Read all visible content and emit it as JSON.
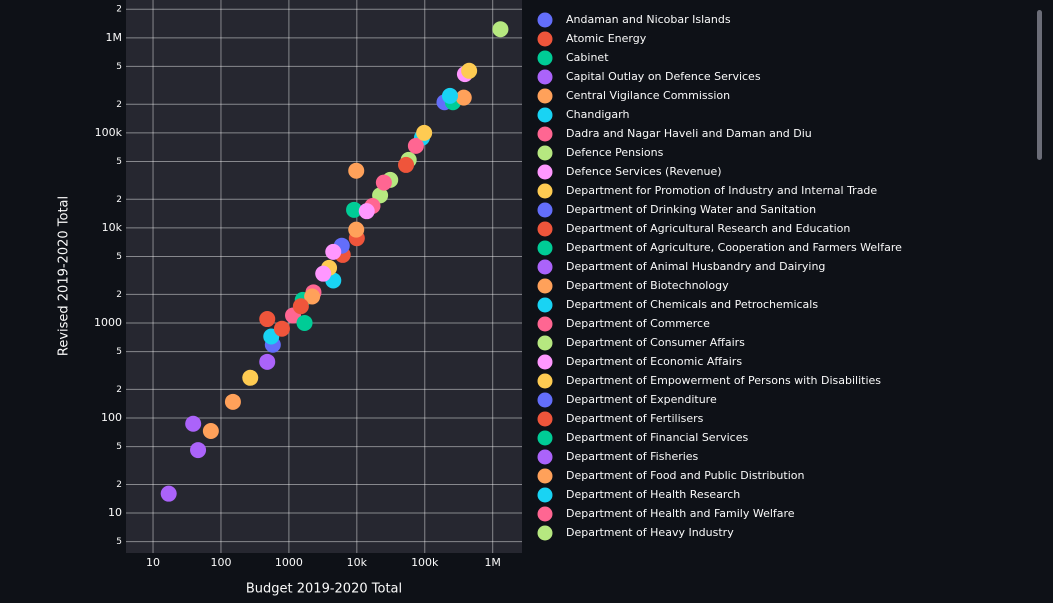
{
  "chart_data": {
    "type": "scatter",
    "log_x": true,
    "log_y": true,
    "grid": true,
    "x_label": "Budget 2019-2020 Total",
    "y_label": "Revised 2019-2020 Total",
    "xlim": [
      4,
      2700000
    ],
    "ylim": [
      3.8,
      2500000
    ],
    "xticks": [
      10,
      100,
      1000,
      {
        "value": 10000,
        "label": "10k"
      },
      {
        "value": 100000,
        "label": "100k"
      },
      {
        "value": 1000000,
        "label": "1M"
      }
    ],
    "yticks": [
      5,
      10,
      {
        "value": 20,
        "label": "2"
      },
      {
        "value": 50,
        "label": "5"
      },
      100,
      {
        "value": 200,
        "label": "2"
      },
      {
        "value": 500,
        "label": "5"
      },
      1000,
      {
        "value": 2000,
        "label": "2"
      },
      {
        "value": 5000,
        "label": "5"
      },
      {
        "value": 10000,
        "label": "10k"
      },
      {
        "value": 20000,
        "label": "2"
      },
      {
        "value": 50000,
        "label": "5"
      },
      {
        "value": 100000,
        "label": "100k"
      },
      {
        "value": 200000,
        "label": "2"
      },
      {
        "value": 500000,
        "label": "5"
      },
      {
        "value": 1000000,
        "label": "1M"
      },
      {
        "value": 2000000,
        "label": "2"
      }
    ],
    "series": [
      {
        "name": "Andaman and Nicobar Islands",
        "color": "#636efa",
        "x": [
          580
        ],
        "values": [
          590
        ]
      },
      {
        "name": "Atomic Energy",
        "color": "#EF553B",
        "x": [
          6200
        ],
        "values": [
          5200
        ]
      },
      {
        "name": "Cabinet",
        "color": "#00cc96",
        "x": [
          1600
        ],
        "values": [
          1750
        ]
      },
      {
        "name": "Capital Outlay on Defence Services",
        "color": "#ab63fa",
        "x": [
          480
        ],
        "values": [
          390
        ]
      },
      {
        "name": "Central Vigilance Commission",
        "color": "#FFA15A",
        "x": [
          150
        ],
        "values": [
          148
        ]
      },
      {
        "name": "Chandigarh",
        "color": "#19d3f3",
        "x": [
          4500
        ],
        "values": [
          2800
        ]
      },
      {
        "name": "Dadra and Nagar Haveli and Daman and Diu",
        "color": "#FF6692",
        "x": [
          1150
        ],
        "values": [
          1200
        ]
      },
      {
        "name": "Defence Pensions",
        "color": "#B6E880",
        "x": [
          58000
        ],
        "values": [
          52000
        ]
      },
      {
        "name": "Defence Services (Revenue)",
        "color": "#FF97FF",
        "x": [
          390000
        ],
        "values": [
          415000
        ]
      },
      {
        "name": "Department for Promotion of Industry and Internal Trade",
        "color": "#FECB52",
        "x": [
          3900
        ],
        "values": [
          3800
        ]
      },
      {
        "name": "Department of  Drinking Water and Sanitation",
        "color": "#636efa",
        "x": [
          195000
        ],
        "values": [
          210000
        ]
      },
      {
        "name": "Department of Agricultural Research and Education",
        "color": "#EF553B",
        "x": [
          10000
        ],
        "values": [
          7800
        ]
      },
      {
        "name": "Department of Agriculture, Cooperation and Farmers Welfare",
        "color": "#00cc96",
        "x": [
          260000
        ],
        "values": [
          210000
        ]
      },
      {
        "name": "Department of Animal Husbandry and Dairying",
        "color": "#ab63fa",
        "x": [
          46
        ],
        "values": [
          46
        ]
      },
      {
        "name": "Department of Biotechnology",
        "color": "#FFA15A",
        "x": [
          9800
        ],
        "values": [
          9600
        ]
      },
      {
        "name": "Department of Chemicals and Petrochemicals",
        "color": "#19d3f3",
        "x": [
          550
        ],
        "values": [
          720
        ]
      },
      {
        "name": "Department of Commerce",
        "color": "#FF6692",
        "x": [
          2300
        ],
        "values": [
          2100
        ]
      },
      {
        "name": "Department of Consumer Affairs",
        "color": "#B6E880",
        "x": [
          22000
        ],
        "values": [
          22000
        ]
      },
      {
        "name": "Department of Economic Affairs",
        "color": "#FF97FF",
        "x": [
          3200
        ],
        "values": [
          3300
        ]
      },
      {
        "name": "Department of Empowerment of Persons with Disabilities",
        "color": "#FECB52",
        "x": [
          270
        ],
        "values": [
          265
        ]
      },
      {
        "name": "Department of Expenditure",
        "color": "#636efa",
        "x": [
          6000
        ],
        "values": [
          6500
        ]
      },
      {
        "name": "Department of Fertilisers",
        "color": "#EF553B",
        "x": [
          53000
        ],
        "values": [
          46000
        ]
      },
      {
        "name": "Department of Financial Services",
        "color": "#00cc96",
        "x": [
          9100
        ],
        "values": [
          15500
        ]
      },
      {
        "name": "Department of Fisheries",
        "color": "#ab63fa",
        "x": [
          17
        ],
        "values": [
          16
        ]
      },
      {
        "name": "Department of Food and Public Distribution",
        "color": "#FFA15A",
        "x": [
          375000
        ],
        "values": [
          235000
        ]
      },
      {
        "name": "Department of Health Research",
        "color": "#19d3f3",
        "x": [
          91000
        ],
        "values": [
          89000
        ]
      },
      {
        "name": "Department of Health and Family Welfare",
        "color": "#FF6692",
        "x": [
          74000
        ],
        "values": [
          73000
        ]
      },
      {
        "name": "Department of Heavy Industry",
        "color": "#B6E880",
        "x": [
          31000
        ],
        "values": [
          32000
        ]
      },
      {
        "name": null,
        "color": "#B6E880",
        "x": [
          1300000
        ],
        "values": [
          1230000
        ]
      },
      {
        "name": null,
        "color": "#FECB52",
        "x": [
          450000
        ],
        "values": [
          450000
        ]
      },
      {
        "name": null,
        "color": "#19d3f3",
        "x": [
          235000
        ],
        "values": [
          245000
        ]
      },
      {
        "name": null,
        "color": "#FECB52",
        "x": [
          98000
        ],
        "values": [
          100000
        ]
      },
      {
        "name": null,
        "color": "#FF6692",
        "x": [
          25000
        ],
        "values": [
          30000
        ]
      },
      {
        "name": null,
        "color": "#FFA15A",
        "x": [
          9800
        ],
        "values": [
          40000
        ]
      },
      {
        "name": null,
        "color": "#FF6692",
        "x": [
          17000
        ],
        "values": [
          17000
        ]
      },
      {
        "name": null,
        "color": "#FF97FF",
        "x": [
          14000
        ],
        "values": [
          15000
        ]
      },
      {
        "name": null,
        "color": "#FF97FF",
        "x": [
          4500
        ],
        "values": [
          5600
        ]
      },
      {
        "name": null,
        "color": "#FFA15A",
        "x": [
          2200
        ],
        "values": [
          1900
        ]
      },
      {
        "name": null,
        "color": "#EF553B",
        "x": [
          1500
        ],
        "values": [
          1500
        ]
      },
      {
        "name": null,
        "color": "#00cc96",
        "x": [
          1700
        ],
        "values": [
          1000
        ]
      },
      {
        "name": null,
        "color": "#EF553B",
        "x": [
          790
        ],
        "values": [
          870
        ]
      },
      {
        "name": null,
        "color": "#EF553B",
        "x": [
          480
        ],
        "values": [
          1100
        ]
      },
      {
        "name": null,
        "color": "#ab63fa",
        "x": [
          39
        ],
        "values": [
          87
        ]
      },
      {
        "name": null,
        "color": "#FFA15A",
        "x": [
          71
        ],
        "values": [
          73
        ]
      }
    ]
  }
}
